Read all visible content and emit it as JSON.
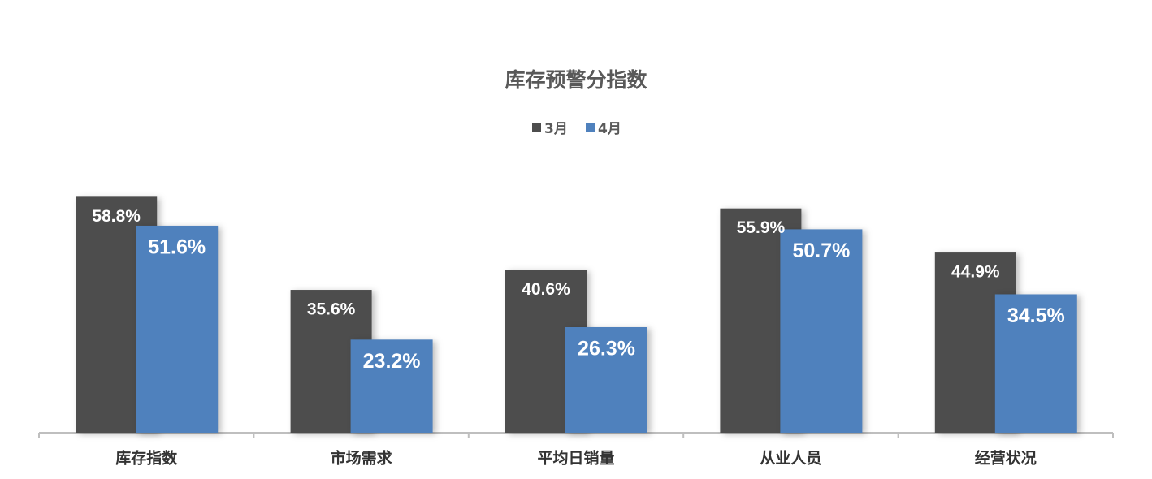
{
  "chart_data": {
    "type": "bar",
    "title": "库存预警分指数",
    "categories": [
      "库存指数",
      "市场需求",
      "平均日销量",
      "从业人员",
      "经营状况"
    ],
    "series": [
      {
        "name": "3月",
        "color": "#4d4d4d",
        "values": [
          58.8,
          35.6,
          40.6,
          55.9,
          44.9
        ],
        "value_labels": [
          "58.8%",
          "35.6%",
          "40.6%",
          "55.9%",
          "44.9%"
        ]
      },
      {
        "name": "4月",
        "color": "#4f81bd",
        "values": [
          51.6,
          23.2,
          26.3,
          50.7,
          34.5
        ],
        "value_labels": [
          "51.6%",
          "23.2%",
          "26.3%",
          "50.7%",
          "34.5%"
        ]
      }
    ],
    "ylim": [
      0,
      70
    ],
    "legend": "top"
  }
}
